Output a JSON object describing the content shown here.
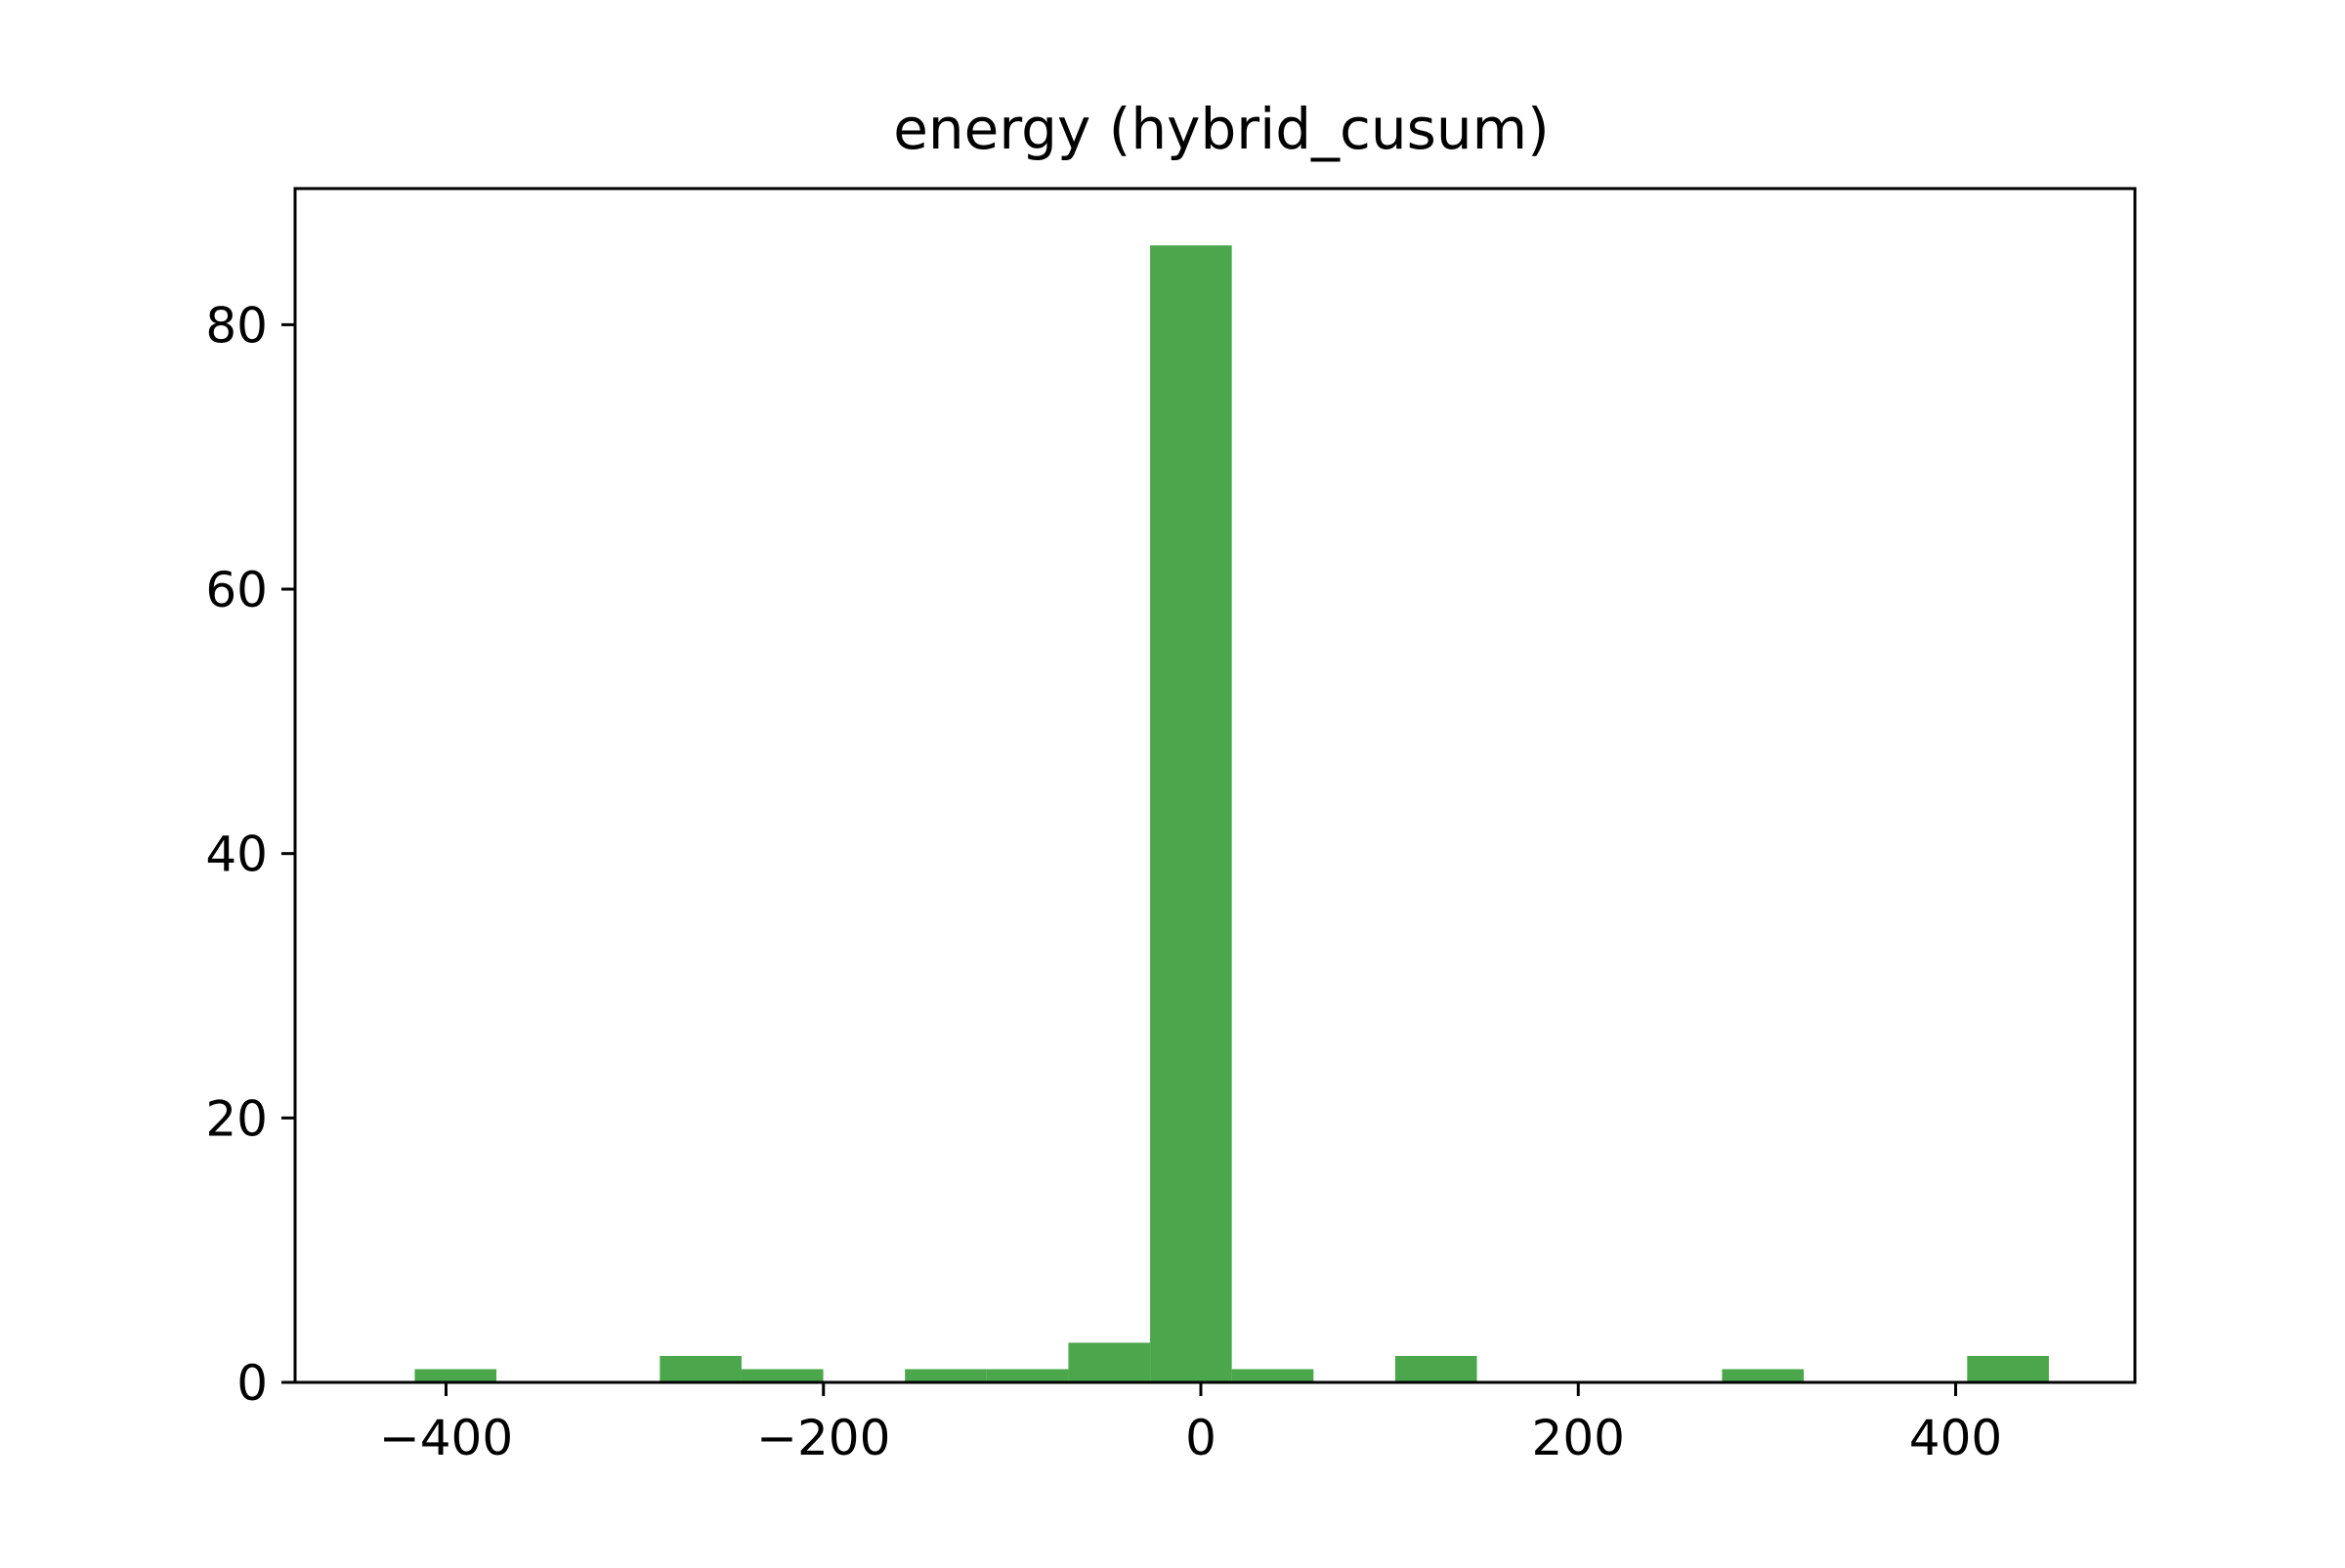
{
  "chart_data": {
    "type": "bar",
    "title": "energy (hybrid_cusum)",
    "xlabel": "",
    "ylabel": "",
    "xlim": [
      -480,
      495
    ],
    "ylim": [
      0,
      90.3
    ],
    "grid": false,
    "x_ticks": [
      "−400",
      "−200",
      "0",
      "200",
      "400"
    ],
    "x_tick_values": [
      -400,
      -200,
      0,
      200,
      400
    ],
    "y_ticks": [
      "0",
      "20",
      "40",
      "60",
      "80"
    ],
    "y_tick_values": [
      0,
      20,
      40,
      60,
      80
    ],
    "bar_color": "#4ca64c",
    "bins": [
      {
        "x0": -416.6,
        "x1": -373.3,
        "count": 1
      },
      {
        "x0": -373.3,
        "x1": -330.0,
        "count": 0
      },
      {
        "x0": -330.0,
        "x1": -286.7,
        "count": 0
      },
      {
        "x0": -286.7,
        "x1": -243.4,
        "count": 2
      },
      {
        "x0": -243.4,
        "x1": -200.1,
        "count": 1
      },
      {
        "x0": -200.1,
        "x1": -156.8,
        "count": 0
      },
      {
        "x0": -156.8,
        "x1": -113.5,
        "count": 1
      },
      {
        "x0": -113.5,
        "x1": -70.2,
        "count": 1
      },
      {
        "x0": -70.2,
        "x1": -26.9,
        "count": 3
      },
      {
        "x0": -26.9,
        "x1": 16.4,
        "count": 86
      },
      {
        "x0": 16.4,
        "x1": 59.7,
        "count": 1
      },
      {
        "x0": 59.7,
        "x1": 103.0,
        "count": 0
      },
      {
        "x0": 103.0,
        "x1": 146.3,
        "count": 2
      },
      {
        "x0": 146.3,
        "x1": 189.6,
        "count": 0
      },
      {
        "x0": 189.6,
        "x1": 232.9,
        "count": 0
      },
      {
        "x0": 232.9,
        "x1": 276.2,
        "count": 0
      },
      {
        "x0": 276.2,
        "x1": 319.5,
        "count": 1
      },
      {
        "x0": 319.5,
        "x1": 362.8,
        "count": 0
      },
      {
        "x0": 362.8,
        "x1": 406.1,
        "count": 0
      },
      {
        "x0": 406.1,
        "x1": 449.4,
        "count": 2
      }
    ]
  }
}
